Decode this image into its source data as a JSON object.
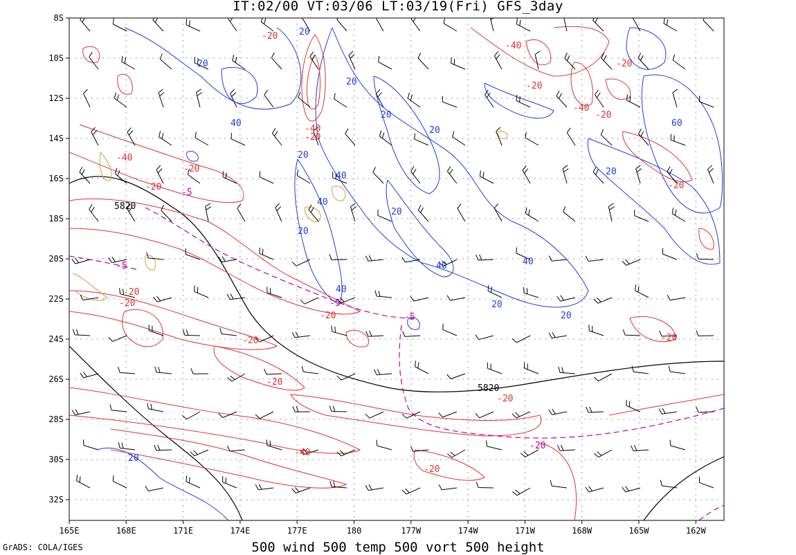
{
  "title": "IT:02/00 VT:03/06 LT:03/19(Fri) GFS_3day",
  "caption": "500 wind 500 temp 500 vort 500 height",
  "credit": "GrADS: COLA/IGES",
  "lat_ticks": [
    "8S",
    "10S",
    "12S",
    "14S",
    "16S",
    "18S",
    "20S",
    "22S",
    "24S",
    "26S",
    "28S",
    "30S",
    "32S"
  ],
  "lon_ticks": [
    "165E",
    "168E",
    "171E",
    "174E",
    "177E",
    "180",
    "177W",
    "174W",
    "171W",
    "168W",
    "165W",
    "162W"
  ],
  "colors": {
    "height": "#000000",
    "vorticity": "#1e3cdc",
    "temperature": "#e03030",
    "vort_dashed": "#c000a0",
    "precip": "#d0a030"
  },
  "height_labels": [
    "5820",
    "5820"
  ],
  "vort_labels": [
    "20",
    "20",
    "40",
    "20",
    "20",
    "20",
    "40",
    "20",
    "40",
    "20",
    "20",
    "40",
    "40",
    "40",
    "20",
    "20",
    "20",
    "60",
    "20"
  ],
  "red_labels": [
    "-20",
    "-40",
    "-20",
    "-20",
    "-40",
    "-40",
    "-20",
    "-40",
    "-20",
    "-20",
    "-20",
    "-20",
    "-20",
    "-20",
    "-20",
    "-20",
    "-20",
    "-40",
    "-20",
    "-20",
    "-20"
  ],
  "magenta_labels": [
    "-5",
    "-5",
    "-5",
    "-5",
    "-20"
  ]
}
